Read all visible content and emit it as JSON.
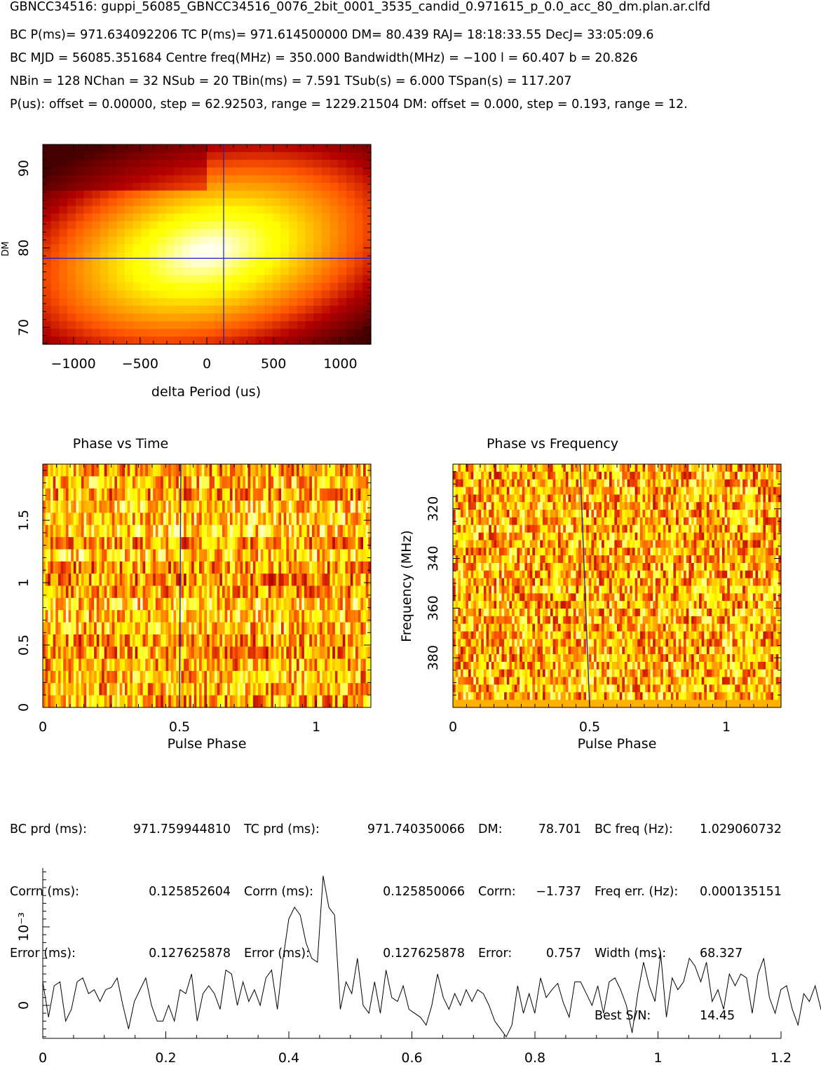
{
  "header": {
    "line1": "GBNCC34516: guppi_56085_GBNCC34516_0076_2bit_0001_3535_candid_0.971615_p_0.0_acc_80_dm.plan.ar.clfd",
    "line2": "BC P(ms)= 971.634092206 TC P(ms)= 971.614500000 DM= 80.439 RAJ= 18:18:33.55 DecJ= 33:05:09.6",
    "line3": "BC MJD = 56085.351684 Centre freq(MHz) = 350.000 Bandwidth(MHz) = −100 l = 60.407 b = 20.826",
    "line4": "NBin = 128 NChan = 32 NSub = 20 TBin(ms) = 7.591 TSub(s) = 6.000 TSpan(s) = 117.207",
    "line5": "P(us): offset = 0.00000, step = 62.92503, range = 1229.21504 DM: offset = 0.000, step = 0.193, range = 12."
  },
  "stats": {
    "col1": [
      "BC prd (ms):",
      "Corrn (ms):",
      "Error (ms):"
    ],
    "col1v": [
      "971.759944810",
      "0.125852604",
      "0.127625878"
    ],
    "col2": [
      "TC prd (ms):",
      "Corrn (ms):",
      "Error (ms):"
    ],
    "col2v": [
      "971.740350066",
      "0.125850066",
      "0.127625878"
    ],
    "col3": [
      "DM:",
      "Corrn:",
      "Error:"
    ],
    "col3v": [
      "78.701",
      "−1.737",
      "0.757"
    ],
    "col4": [
      "BC freq (Hz):",
      "Freq err. (Hz):",
      "Width (ms):",
      "Best S/N:"
    ],
    "col4v": [
      "1.029060732",
      "0.000135151",
      "68.327",
      "14.45"
    ]
  },
  "chart_data": [
    {
      "type": "heatmap",
      "id": "dm_period",
      "xlabel": "delta Period (us)",
      "ylabel": "DM",
      "xlim": [
        -1229.2,
        1229.2
      ],
      "ylim": [
        67.9,
        93.0
      ],
      "xticks": [
        -1000,
        -500,
        0,
        500,
        1000
      ],
      "xtick_labels": [
        "−1000",
        "−500",
        "0",
        "500",
        "1000"
      ],
      "yticks": [
        70,
        80,
        90
      ],
      "peak": {
        "x": 0,
        "y": 79.5
      },
      "crosshair": {
        "x": 125.9,
        "y": 78.7
      },
      "colormap": "heat"
    },
    {
      "type": "heatmap",
      "id": "phase_time",
      "title": "Phase vs Time",
      "xlabel": "Pulse Phase",
      "xlim": [
        0,
        1.2
      ],
      "ylim": [
        0,
        1.95
      ],
      "xticks": [
        0,
        0.5,
        1
      ],
      "yticks": [
        0,
        0.5,
        1,
        1.5
      ],
      "ytick_labels": [
        "0",
        "0.5",
        "1",
        "1.5"
      ],
      "rows": 20,
      "cols": 128,
      "line": {
        "x0": 0.5,
        "x1": 0.505
      }
    },
    {
      "type": "heatmap",
      "id": "phase_freq",
      "title": "Phase vs Frequency",
      "xlabel": "Pulse Phase",
      "ylabel": "Frequency (MHz)",
      "xlim": [
        0,
        1.2
      ],
      "ylim": [
        400,
        302
      ],
      "xticks": [
        0,
        0.5,
        1
      ],
      "yticks": [
        320,
        340,
        360,
        380
      ],
      "rows": 32,
      "cols": 128,
      "line": {
        "xtop": 0.465,
        "xbottom": 0.5
      }
    },
    {
      "type": "line",
      "id": "profile",
      "xlim": [
        0,
        1.2
      ],
      "ylim": [
        -4.2,
        17.5
      ],
      "xticks": [
        0,
        0.2,
        0.4,
        0.6,
        0.8,
        1,
        1.2
      ],
      "xtick_labels": [
        "0",
        "0.2",
        "0.4",
        "0.6",
        "0.8",
        "1",
        "1.2"
      ],
      "yticks": [
        0,
        10
      ],
      "ytick_labels": [
        "0",
        "10⁻³"
      ],
      "x_step": 0.0093,
      "values": [
        3,
        -1.5,
        2.5,
        3,
        -2,
        -0.5,
        3,
        3.5,
        1.5,
        2,
        0.5,
        2,
        2.3,
        3.5,
        0,
        -3,
        0.5,
        2,
        3.5,
        0,
        -2,
        -2,
        0,
        -2,
        2,
        1.5,
        4,
        -2,
        1.5,
        2.5,
        1.5,
        -0.5,
        4.5,
        4,
        0,
        3,
        0.5,
        2,
        0,
        3.5,
        4.5,
        -0.5,
        6,
        11,
        12.5,
        11.5,
        8,
        6,
        5.5,
        16.5,
        12.5,
        11.5,
        -0.5,
        3,
        1.5,
        6,
        0,
        -1,
        3,
        -1,
        4.5,
        1,
        0.5,
        2.5,
        -0.5,
        -1,
        -1.5,
        -2.5,
        0,
        4,
        1,
        -0.5,
        1.5,
        0,
        2,
        0.5,
        2,
        1.5,
        0,
        -2,
        -3,
        -4,
        -2.5,
        2.5,
        -1,
        1.5,
        -1,
        3.5,
        1,
        2,
        2.8,
        0.3,
        -1.5,
        3,
        3,
        1.5,
        0,
        2.5,
        -1,
        3,
        3.5,
        2,
        0,
        -3.5,
        1.5,
        5.5,
        2.5,
        0.5,
        6.5,
        -1.5,
        3.5,
        2,
        3,
        6,
        5,
        3,
        5.5,
        0.5,
        2,
        -0.5,
        4,
        2.5,
        4,
        3.5,
        -1,
        4,
        6,
        1,
        -1,
        2,
        2.5,
        -0.5,
        -2.5,
        1.5,
        0.5,
        2.5,
        -0.5,
        0.5,
        4.5
      ]
    }
  ]
}
